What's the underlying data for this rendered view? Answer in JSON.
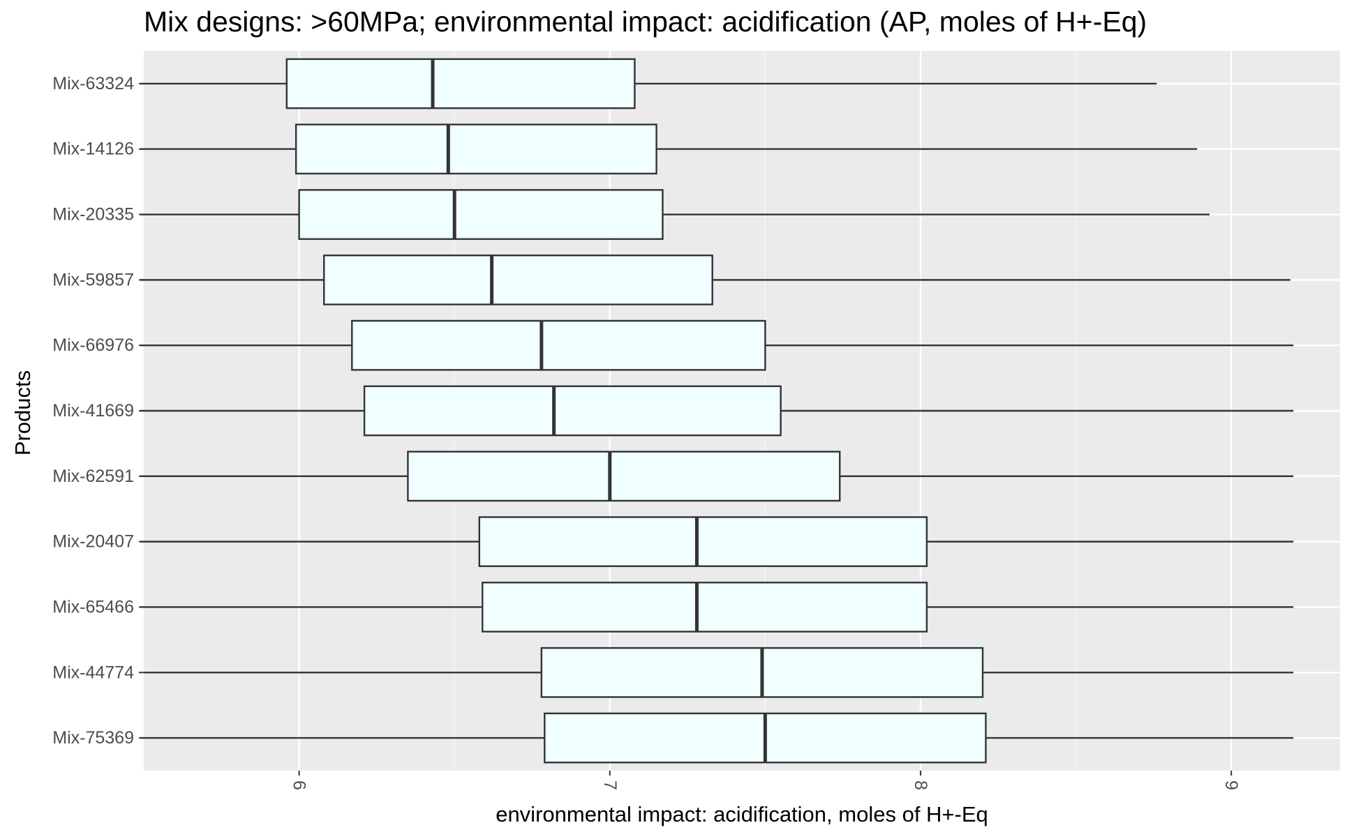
{
  "chart_data": {
    "type": "boxplot",
    "title": "Mix designs: >60MPa; environmental impact: acidification (AP, moles of H+-Eq)",
    "xlabel": "environmental impact: acidification, moles of H+-Eq",
    "ylabel": "Products",
    "xlim": [
      5.5,
      9.35
    ],
    "x_ticks": [
      6,
      7,
      8,
      9
    ],
    "x_tick_labels": [
      "6",
      "7",
      "8",
      "9"
    ],
    "x_tick_rotation": 90,
    "grid": true,
    "colors": {
      "panel_background": "#ebebeb",
      "grid_major": "#ffffff",
      "grid_minor": "#f7f7f7",
      "box_fill": "#f0ffff",
      "box_stroke": "#333333",
      "whisker": "#333333",
      "tick_label": "#4d4d4d"
    },
    "categories": [
      "Mix-63324",
      "Mix-14126",
      "Mix-20335",
      "Mix-59857",
      "Mix-66976",
      "Mix-41669",
      "Mix-62591",
      "Mix-20407",
      "Mix-65466",
      "Mix-44774",
      "Mix-75369"
    ],
    "boxes": [
      {
        "name": "Mix-63324",
        "min": 5.49,
        "q1": 5.96,
        "median": 6.43,
        "q3": 7.08,
        "max": 8.76
      },
      {
        "name": "Mix-14126",
        "min": 5.49,
        "q1": 5.99,
        "median": 6.48,
        "q3": 7.15,
        "max": 8.89
      },
      {
        "name": "Mix-20335",
        "min": 5.49,
        "q1": 6.0,
        "median": 6.5,
        "q3": 7.17,
        "max": 8.93
      },
      {
        "name": "Mix-59857",
        "min": 5.49,
        "q1": 6.08,
        "median": 6.62,
        "q3": 7.33,
        "max": 9.19
      },
      {
        "name": "Mix-66976",
        "min": 5.49,
        "q1": 6.17,
        "median": 6.78,
        "q3": 7.5,
        "max": 9.2
      },
      {
        "name": "Mix-41669",
        "min": 5.49,
        "q1": 6.21,
        "median": 6.82,
        "q3": 7.55,
        "max": 9.2
      },
      {
        "name": "Mix-62591",
        "min": 5.49,
        "q1": 6.35,
        "median": 7.0,
        "q3": 7.74,
        "max": 9.2
      },
      {
        "name": "Mix-20407",
        "min": 5.49,
        "q1": 6.58,
        "median": 7.28,
        "q3": 8.02,
        "max": 9.2
      },
      {
        "name": "Mix-65466",
        "min": 5.49,
        "q1": 6.59,
        "median": 7.28,
        "q3": 8.02,
        "max": 9.2
      },
      {
        "name": "Mix-44774",
        "min": 5.5,
        "q1": 6.78,
        "median": 7.49,
        "q3": 8.2,
        "max": 9.2
      },
      {
        "name": "Mix-75369",
        "min": 5.49,
        "q1": 6.79,
        "median": 7.5,
        "q3": 8.21,
        "max": 9.2
      }
    ]
  }
}
